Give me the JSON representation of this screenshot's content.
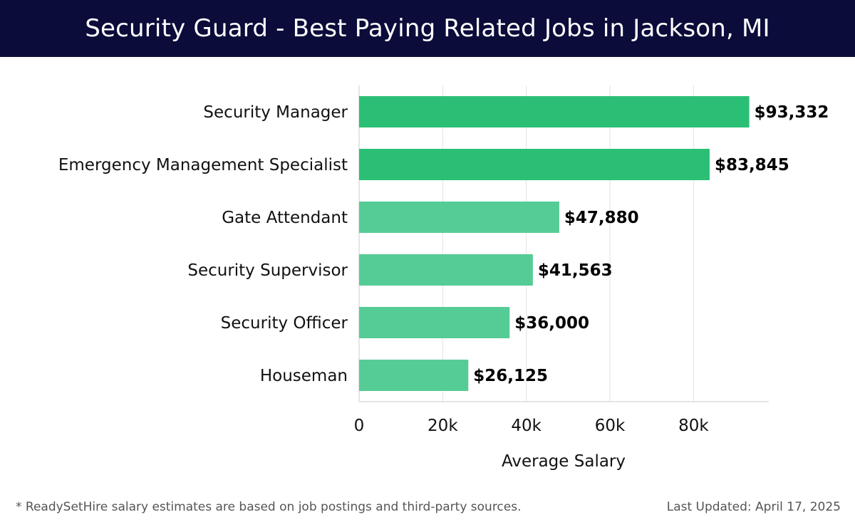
{
  "header": {
    "title": "Security Guard - Best Paying Related Jobs in Jackson, MI"
  },
  "footer": {
    "note": "* ReadySetHire salary estimates are based on job postings and third-party sources.",
    "updated": "Last Updated: April 17, 2025"
  },
  "colors": {
    "header_bg": "#0b0c3a",
    "bar_top": "#2bbf76",
    "bar_rest": "#55cc95",
    "grid": "#e3e3e3",
    "axis": "#cccccc"
  },
  "chart_data": {
    "type": "bar",
    "orientation": "horizontal",
    "title": "Security Guard - Best Paying Related Jobs in Jackson, MI",
    "xlabel": "Average Salary",
    "ylabel": "",
    "xlim": [
      0,
      98000
    ],
    "grid": true,
    "categories": [
      "Security Manager",
      "Emergency Management Specialist",
      "Gate Attendant",
      "Security Supervisor",
      "Security Officer",
      "Houseman"
    ],
    "values": [
      93332,
      83845,
      47880,
      41563,
      36000,
      26125
    ],
    "value_labels": [
      "$93,332",
      "$83,845",
      "$47,880",
      "$41,563",
      "$36,000",
      "$26,125"
    ],
    "ticks": [
      0,
      20000,
      40000,
      60000,
      80000
    ],
    "tick_labels": [
      "0",
      "20k",
      "40k",
      "60k",
      "80k"
    ],
    "highlighted_count": 2
  }
}
